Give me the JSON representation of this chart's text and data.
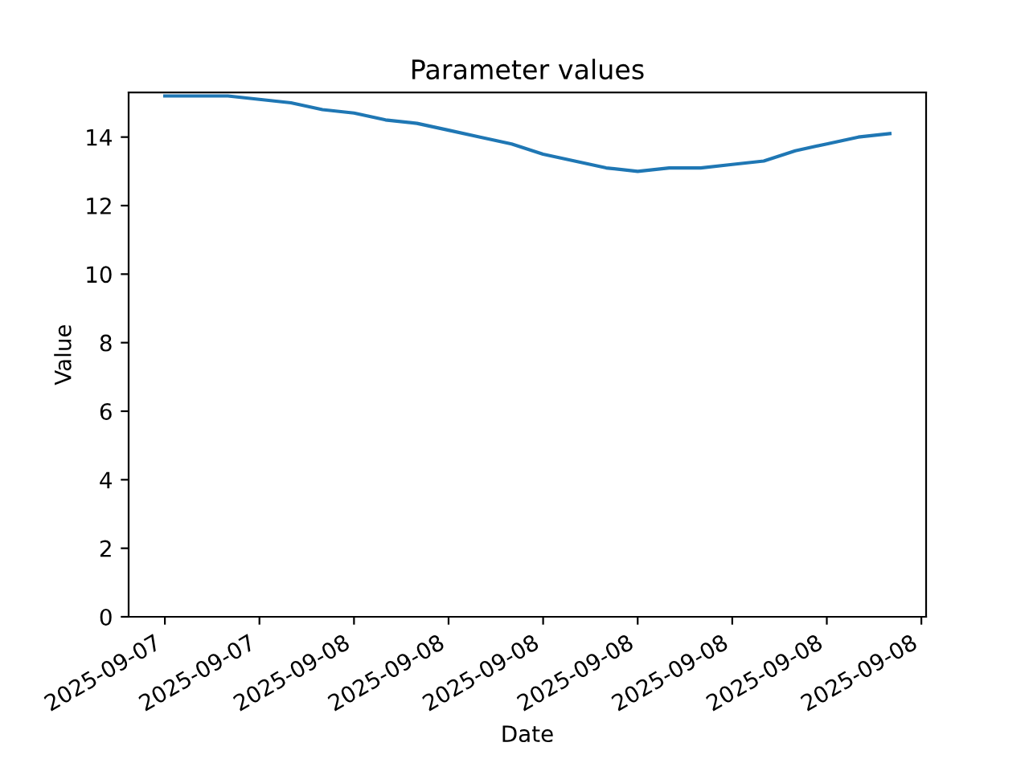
{
  "chart_data": {
    "type": "line",
    "title": "Parameter values",
    "xlabel": "Date",
    "ylabel": "Value",
    "x": [
      "2025-09-07T18:00",
      "2025-09-07T19:00",
      "2025-09-07T20:00",
      "2025-09-07T21:00",
      "2025-09-07T22:00",
      "2025-09-07T23:00",
      "2025-09-08T00:00",
      "2025-09-08T01:00",
      "2025-09-08T02:00",
      "2025-09-08T03:00",
      "2025-09-08T04:00",
      "2025-09-08T05:00",
      "2025-09-08T06:00",
      "2025-09-08T07:00",
      "2025-09-08T08:00",
      "2025-09-08T09:00",
      "2025-09-08T10:00",
      "2025-09-08T11:00",
      "2025-09-08T12:00",
      "2025-09-08T13:00",
      "2025-09-08T14:00",
      "2025-09-08T15:00",
      "2025-09-08T16:00",
      "2025-09-08T17:00"
    ],
    "series": [
      {
        "color": "#1f77b4",
        "values": [
          15.2,
          15.2,
          15.2,
          15.1,
          15.0,
          14.8,
          14.7,
          14.5,
          14.4,
          14.2,
          14.0,
          13.8,
          13.5,
          13.3,
          13.1,
          13.0,
          13.1,
          13.1,
          13.2,
          13.3,
          13.6,
          13.8,
          14.0,
          14.1
        ]
      }
    ],
    "xlim": [
      "2025-09-07T16:51",
      "2025-09-08T18:09"
    ],
    "xticks": [
      {
        "value": "2025-09-07T18:00",
        "label": "2025-09-07"
      },
      {
        "value": "2025-09-07T21:00",
        "label": "2025-09-07"
      },
      {
        "value": "2025-09-08T00:00",
        "label": "2025-09-08"
      },
      {
        "value": "2025-09-08T03:00",
        "label": "2025-09-08"
      },
      {
        "value": "2025-09-08T06:00",
        "label": "2025-09-08"
      },
      {
        "value": "2025-09-08T09:00",
        "label": "2025-09-08"
      },
      {
        "value": "2025-09-08T12:00",
        "label": "2025-09-08"
      },
      {
        "value": "2025-09-08T15:00",
        "label": "2025-09-08"
      },
      {
        "value": "2025-09-08T18:00",
        "label": "2025-09-08"
      }
    ],
    "ylim": [
      0,
      15.3
    ],
    "yticks": [
      0,
      2,
      4,
      6,
      8,
      10,
      12,
      14
    ],
    "grid": false,
    "legend": false,
    "marker": "none",
    "line_style": "solid"
  }
}
